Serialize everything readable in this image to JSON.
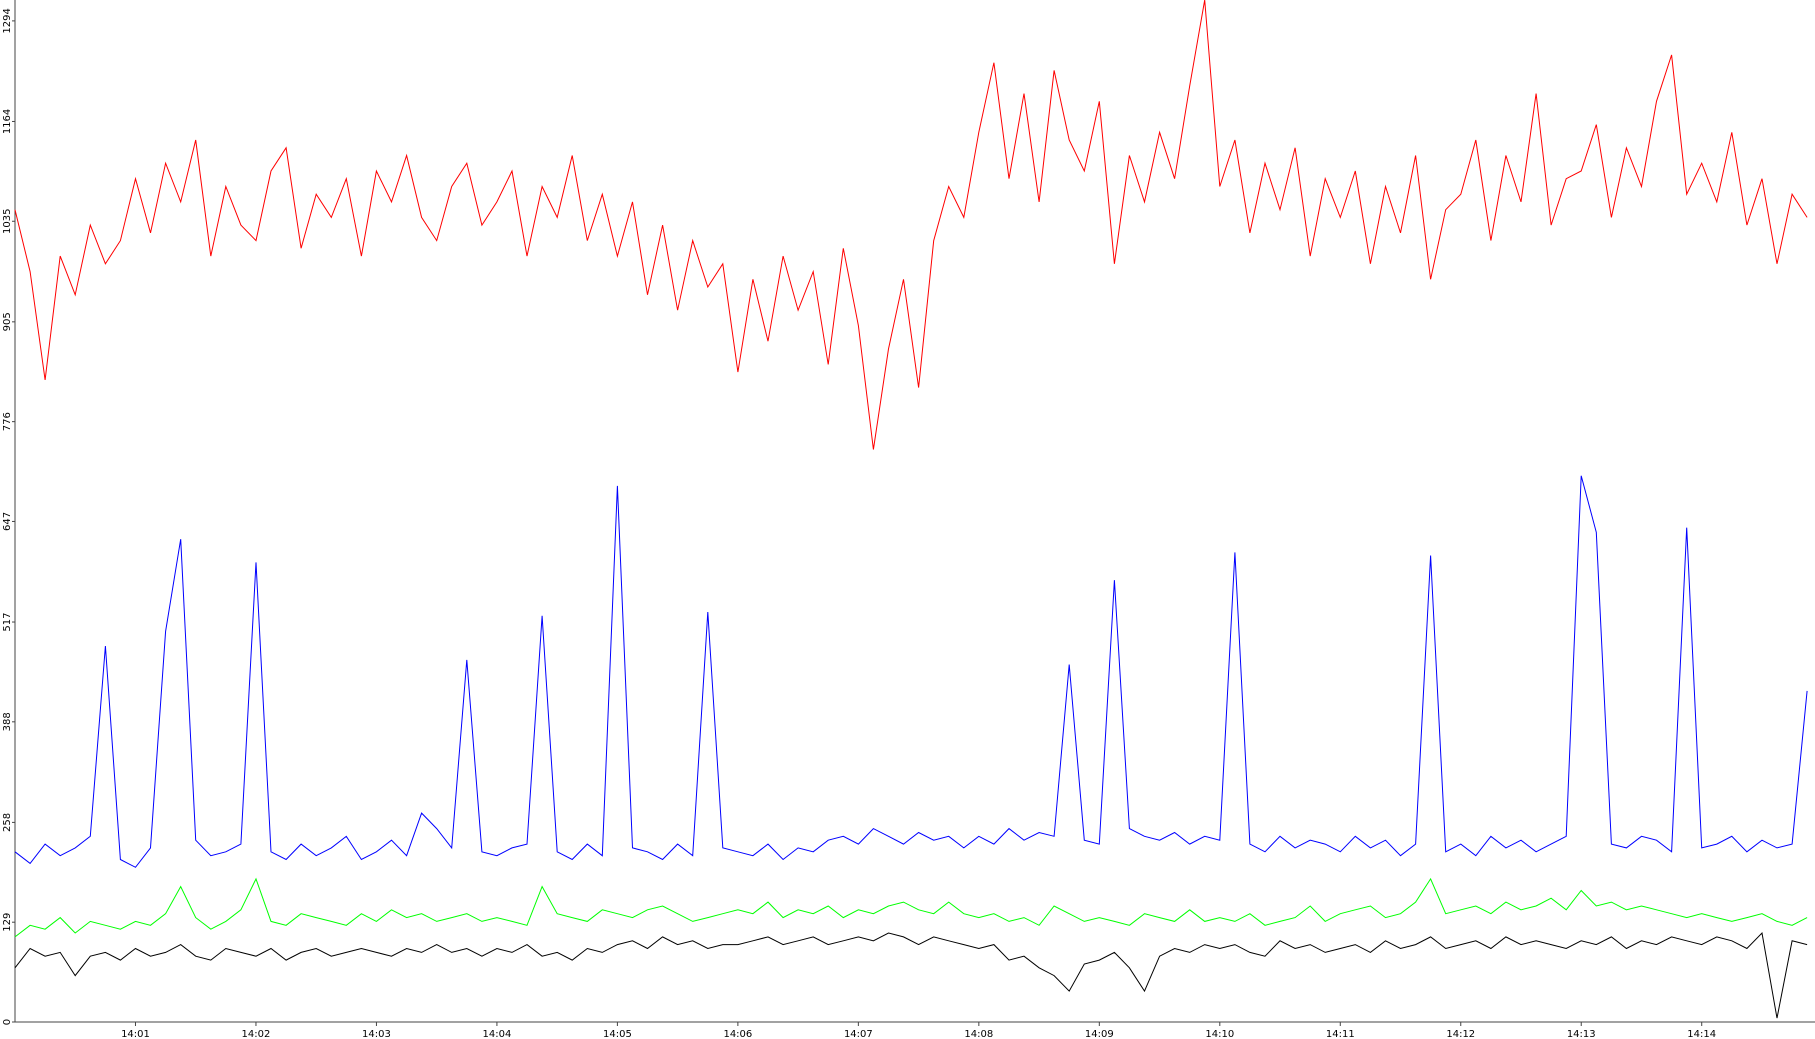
{
  "chart_data": {
    "type": "line",
    "categories": [
      null,
      null,
      null,
      null,
      null,
      null,
      null,
      null,
      "14:01",
      null,
      null,
      null,
      null,
      null,
      null,
      null,
      "14:02",
      null,
      null,
      null,
      null,
      null,
      null,
      null,
      "14:03",
      null,
      null,
      null,
      null,
      null,
      null,
      null,
      "14:04",
      null,
      null,
      null,
      null,
      null,
      null,
      null,
      "14:05",
      null,
      null,
      null,
      null,
      null,
      null,
      null,
      "14:06",
      null,
      null,
      null,
      null,
      null,
      null,
      null,
      "14:07",
      null,
      null,
      null,
      null,
      null,
      null,
      null,
      "14:08",
      null,
      null,
      null,
      null,
      null,
      null,
      null,
      "14:09",
      null,
      null,
      null,
      null,
      null,
      null,
      null,
      "14:10",
      null,
      null,
      null,
      null,
      null,
      null,
      null,
      "14:11",
      null,
      null,
      null,
      null,
      null,
      null,
      null,
      "14:12",
      null,
      null,
      null,
      null,
      null,
      null,
      null,
      "14:13",
      null,
      null,
      null,
      null,
      null,
      null,
      null,
      "14:14",
      null,
      null,
      null,
      null,
      null,
      null,
      null
    ],
    "series": [
      {
        "color": "#ff0000",
        "values": [
          1050,
          970,
          830,
          990,
          940,
          1030,
          980,
          1010,
          1090,
          1020,
          1110,
          1060,
          1140,
          990,
          1080,
          1030,
          1010,
          1100,
          1130,
          1000,
          1070,
          1040,
          1090,
          990,
          1100,
          1060,
          1120,
          1040,
          1010,
          1080,
          1110,
          1030,
          1060,
          1100,
          990,
          1080,
          1040,
          1120,
          1010,
          1070,
          990,
          1060,
          940,
          1030,
          920,
          1010,
          950,
          980,
          840,
          960,
          880,
          990,
          920,
          970,
          850,
          1000,
          900,
          740,
          870,
          960,
          820,
          1010,
          1080,
          1040,
          1150,
          1240,
          1090,
          1200,
          1060,
          1230,
          1140,
          1100,
          1190,
          980,
          1120,
          1060,
          1150,
          1090,
          1210,
          1321,
          1080,
          1140,
          1020,
          1110,
          1050,
          1130,
          990,
          1090,
          1040,
          1100,
          980,
          1080,
          1020,
          1120,
          960,
          1050,
          1070,
          1140,
          1010,
          1120,
          1060,
          1200,
          1030,
          1090,
          1100,
          1160,
          1040,
          1130,
          1080,
          1190,
          1250,
          1070,
          1110,
          1060,
          1150,
          1030,
          1090,
          980,
          1070,
          1040
        ]
      },
      {
        "color": "#0000ff",
        "values": [
          220,
          205,
          230,
          215,
          225,
          240,
          486,
          210,
          200,
          225,
          505,
          624,
          235,
          215,
          220,
          230,
          594,
          220,
          210,
          230,
          215,
          225,
          240,
          210,
          220,
          235,
          215,
          270,
          250,
          225,
          468,
          220,
          215,
          225,
          230,
          525,
          220,
          210,
          230,
          215,
          693,
          225,
          220,
          210,
          230,
          215,
          530,
          225,
          220,
          215,
          230,
          210,
          225,
          220,
          235,
          240,
          230,
          250,
          240,
          230,
          245,
          235,
          240,
          225,
          240,
          230,
          250,
          235,
          245,
          240,
          462,
          235,
          230,
          571,
          250,
          240,
          235,
          245,
          230,
          240,
          235,
          607,
          230,
          220,
          240,
          225,
          235,
          230,
          220,
          240,
          225,
          235,
          215,
          230,
          603,
          220,
          230,
          215,
          240,
          225,
          235,
          220,
          230,
          240,
          706,
          633,
          230,
          225,
          240,
          235,
          220,
          639,
          225,
          230,
          240,
          220,
          235,
          225,
          230,
          428
        ]
      },
      {
        "color": "#00ff00",
        "values": [
          110,
          125,
          120,
          135,
          115,
          130,
          125,
          120,
          130,
          125,
          140,
          175,
          135,
          120,
          130,
          145,
          185,
          130,
          125,
          140,
          135,
          130,
          125,
          140,
          130,
          145,
          135,
          140,
          130,
          135,
          140,
          130,
          135,
          130,
          125,
          175,
          140,
          135,
          130,
          145,
          140,
          135,
          145,
          150,
          140,
          130,
          135,
          140,
          145,
          140,
          155,
          135,
          145,
          140,
          150,
          135,
          145,
          140,
          150,
          155,
          145,
          140,
          155,
          140,
          135,
          140,
          130,
          135,
          125,
          150,
          140,
          130,
          135,
          130,
          125,
          140,
          135,
          130,
          145,
          130,
          135,
          130,
          140,
          125,
          130,
          135,
          150,
          130,
          140,
          145,
          150,
          135,
          140,
          155,
          185,
          140,
          145,
          150,
          140,
          155,
          145,
          150,
          160,
          145,
          170,
          150,
          155,
          145,
          150,
          145,
          140,
          135,
          140,
          135,
          130,
          135,
          140,
          130,
          125,
          135
        ]
      },
      {
        "color": "#000000",
        "values": [
          70,
          95,
          85,
          90,
          60,
          85,
          90,
          80,
          95,
          85,
          90,
          100,
          85,
          80,
          95,
          90,
          85,
          95,
          80,
          90,
          95,
          85,
          90,
          95,
          90,
          85,
          95,
          90,
          100,
          90,
          95,
          85,
          95,
          90,
          100,
          85,
          90,
          80,
          95,
          90,
          100,
          105,
          95,
          110,
          100,
          105,
          95,
          100,
          100,
          105,
          110,
          100,
          105,
          110,
          100,
          105,
          110,
          105,
          115,
          110,
          100,
          110,
          105,
          100,
          95,
          100,
          80,
          85,
          70,
          60,
          40,
          75,
          80,
          90,
          70,
          40,
          85,
          95,
          90,
          100,
          95,
          100,
          90,
          85,
          105,
          95,
          100,
          90,
          95,
          100,
          90,
          105,
          95,
          100,
          110,
          95,
          100,
          105,
          95,
          110,
          100,
          105,
          100,
          95,
          105,
          100,
          110,
          95,
          105,
          100,
          110,
          105,
          100,
          110,
          105,
          95,
          115,
          5,
          105,
          100
        ]
      }
    ],
    "ylim": [
      0,
      1321
    ],
    "yticks": [
      0,
      129,
      258,
      388,
      517,
      647,
      776,
      905,
      1035,
      1164,
      1294
    ]
  }
}
